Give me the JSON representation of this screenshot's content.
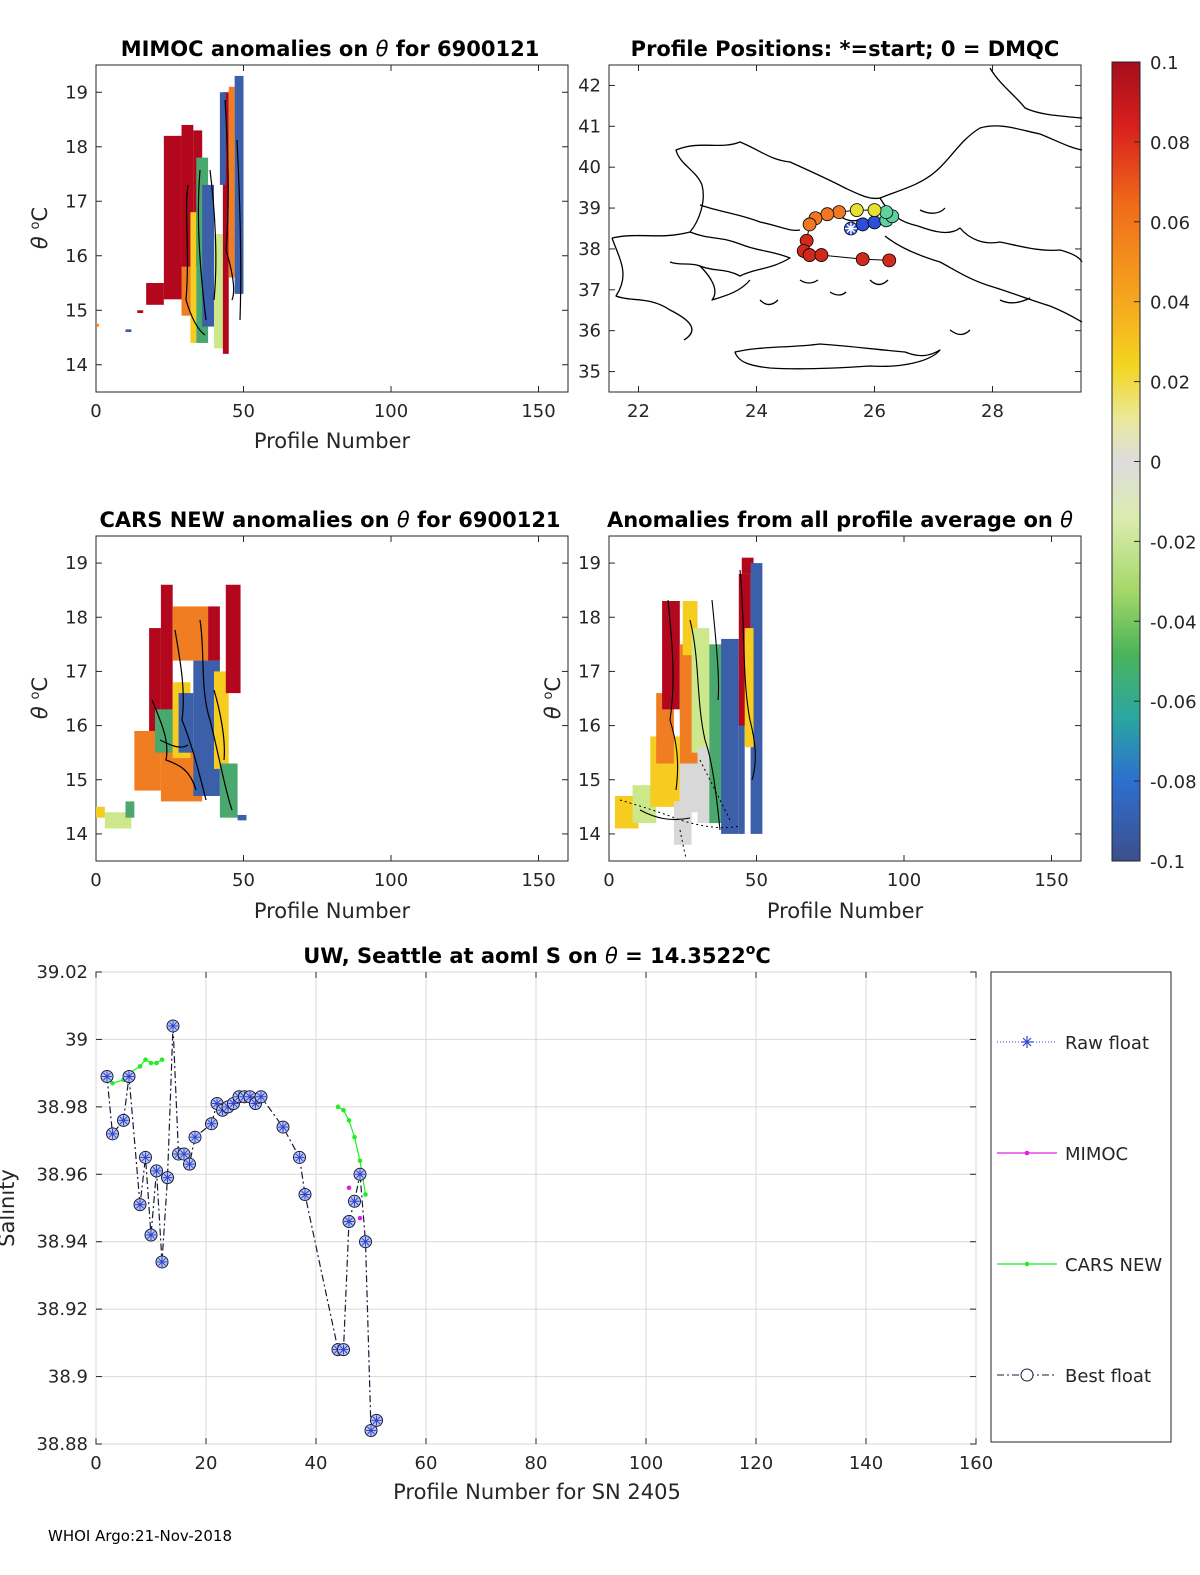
{
  "footer": "WHOI Argo:21-Nov-2018",
  "panels": {
    "mimoc": {
      "title_prefix": "MIMOC anomalies on ",
      "theta": "θ",
      "title_suffix": "  for 6900121",
      "xlabel": "Profile Number",
      "ylabel_theta": "θ",
      "ylabel_unit": "o",
      "ylabel_c": "C"
    },
    "positions": {
      "title": "Profile Positions: *=start; 0 = DMQC"
    },
    "cars": {
      "title_prefix": "CARS NEW anomalies on ",
      "theta": "θ",
      "title_suffix": " for 6900121",
      "xlabel": "Profile Number",
      "ylabel_theta": "θ",
      "ylabel_unit": "o",
      "ylabel_c": "C"
    },
    "allprof": {
      "title_prefix": "Anomalies from all profile average on ",
      "theta": "θ",
      "xlabel": "Profile Number",
      "ylabel_theta": "θ",
      "ylabel_unit": "o",
      "ylabel_c": "C"
    },
    "salinity": {
      "title_prefix": "UW, Seattle at aoml S on ",
      "theta": "θ",
      "title_mid": " = 14.3522",
      "title_unit": "o",
      "title_end": "C",
      "xlabel": "Profile Number for SN 2405",
      "ylabel": "Salinity"
    }
  },
  "colors": {
    "red": "#b2071d",
    "orange": "#f07d22",
    "yellow": "#f5cc1f",
    "grey": "#d8d8d8",
    "lightgreen": "#cde88a",
    "green": "#4aa86e",
    "blue": "#3b5fa8",
    "float_blue": "#3344cc",
    "mimoc_magenta": "#e020e0",
    "cars_green": "#22ee22"
  },
  "chart_data": [
    {
      "type": "heatmap",
      "title": "MIMOC anomalies on θ  for 6900121",
      "xlabel": "Profile Number",
      "ylabel": "θ °C",
      "xlim": [
        0,
        160
      ],
      "ylim": [
        13.5,
        19.5
      ],
      "xticks": [
        "0",
        "50",
        "100",
        "150"
      ],
      "yticks": [
        "14",
        "15",
        "16",
        "17",
        "18",
        "19"
      ],
      "cells": [
        {
          "x0": 17,
          "x1": 23,
          "y0": 15.1,
          "y1": 15.5,
          "c": "red"
        },
        {
          "x0": 23,
          "x1": 29,
          "y0": 15.2,
          "y1": 18.2,
          "c": "red"
        },
        {
          "x0": 29,
          "x1": 33,
          "y0": 15.0,
          "y1": 18.4,
          "c": "red"
        },
        {
          "x0": 33,
          "x1": 36,
          "y0": 15.8,
          "y1": 18.3,
          "c": "red"
        },
        {
          "x0": 29,
          "x1": 32,
          "y0": 14.9,
          "y1": 15.8,
          "c": "orange"
        },
        {
          "x0": 32,
          "x1": 34,
          "y0": 14.4,
          "y1": 16.8,
          "c": "yellow"
        },
        {
          "x0": 34,
          "x1": 38,
          "y0": 14.4,
          "y1": 17.8,
          "c": "green"
        },
        {
          "x0": 36,
          "x1": 40,
          "y0": 14.7,
          "y1": 17.3,
          "c": "blue"
        },
        {
          "x0": 40,
          "x1": 43,
          "y0": 14.3,
          "y1": 16.4,
          "c": "lightgreen"
        },
        {
          "x0": 43,
          "x1": 45,
          "y0": 14.2,
          "y1": 19.0,
          "c": "red"
        },
        {
          "x0": 45,
          "x1": 47,
          "y0": 15.6,
          "y1": 19.1,
          "c": "orange"
        },
        {
          "x0": 47,
          "x1": 50,
          "y0": 15.3,
          "y1": 19.3,
          "c": "blue"
        },
        {
          "x0": 42,
          "x1": 44,
          "y0": 17.3,
          "y1": 19.0,
          "c": "blue"
        },
        {
          "x0": 0,
          "x1": 1,
          "y0": 14.7,
          "y1": 14.75,
          "c": "orange"
        },
        {
          "x0": 10,
          "x1": 12,
          "y0": 14.6,
          "y1": 14.65,
          "c": "blue"
        },
        {
          "x0": 14,
          "x1": 16,
          "y0": 14.95,
          "y1": 15.0,
          "c": "red"
        }
      ]
    },
    {
      "type": "scatter",
      "title": "Profile Positions: *=start; 0 = DMQC",
      "xlim": [
        21.5,
        29.5
      ],
      "ylim": [
        34.5,
        42.5
      ],
      "xticks": [
        "22",
        "24",
        "26",
        "28"
      ],
      "yticks": [
        "35",
        "36",
        "37",
        "38",
        "39",
        "40",
        "41",
        "42"
      ],
      "track_lon": [
        25.6,
        25.8,
        26.0,
        26.2,
        26.3,
        26.2,
        26.0,
        25.7,
        25.4,
        25.2,
        25.0,
        24.9,
        24.85,
        24.8,
        24.9,
        25.1,
        25.8,
        26.25
      ],
      "track_lat": [
        38.5,
        38.6,
        38.65,
        38.7,
        38.8,
        38.9,
        38.95,
        38.95,
        38.9,
        38.85,
        38.75,
        38.6,
        38.2,
        37.95,
        37.85,
        37.85,
        37.75,
        37.72
      ],
      "track_color": [
        "blue",
        "blue",
        "blue",
        "green",
        "green",
        "green",
        "yellow",
        "yellow",
        "orange",
        "orange",
        "orange",
        "orange",
        "red",
        "red",
        "red",
        "red",
        "red",
        "red"
      ]
    },
    {
      "type": "heatmap",
      "title": "CARS NEW anomalies on θ for 6900121",
      "xlabel": "Profile Number",
      "ylabel": "θ °C",
      "xlim": [
        0,
        160
      ],
      "ylim": [
        13.5,
        19.5
      ],
      "xticks": [
        "0",
        "50",
        "100",
        "150"
      ],
      "yticks": [
        "14",
        "15",
        "16",
        "17",
        "18",
        "19"
      ],
      "cells": [
        {
          "x0": 0,
          "x1": 3,
          "y0": 14.3,
          "y1": 14.5,
          "c": "yellow"
        },
        {
          "x0": 3,
          "x1": 12,
          "y0": 14.1,
          "y1": 14.4,
          "c": "lightgreen"
        },
        {
          "x0": 10,
          "x1": 13,
          "y0": 14.3,
          "y1": 14.6,
          "c": "green"
        },
        {
          "x0": 13,
          "x1": 22,
          "y0": 14.8,
          "y1": 15.9,
          "c": "orange"
        },
        {
          "x0": 18,
          "x1": 22,
          "y0": 15.9,
          "y1": 17.8,
          "c": "red"
        },
        {
          "x0": 22,
          "x1": 36,
          "y0": 14.6,
          "y1": 15.6,
          "c": "orange"
        },
        {
          "x0": 22,
          "x1": 26,
          "y0": 15.6,
          "y1": 18.6,
          "c": "red"
        },
        {
          "x0": 26,
          "x1": 38,
          "y0": 17.2,
          "y1": 18.2,
          "c": "orange"
        },
        {
          "x0": 20,
          "x1": 26,
          "y0": 15.5,
          "y1": 16.3,
          "c": "green"
        },
        {
          "x0": 26,
          "x1": 32,
          "y0": 15.4,
          "y1": 16.8,
          "c": "yellow"
        },
        {
          "x0": 28,
          "x1": 33,
          "y0": 15.5,
          "y1": 16.6,
          "c": "blue"
        },
        {
          "x0": 33,
          "x1": 42,
          "y0": 14.7,
          "y1": 17.2,
          "c": "blue"
        },
        {
          "x0": 38,
          "x1": 42,
          "y0": 17.2,
          "y1": 18.2,
          "c": "red"
        },
        {
          "x0": 40,
          "x1": 45,
          "y0": 15.2,
          "y1": 17.0,
          "c": "yellow"
        },
        {
          "x0": 44,
          "x1": 49,
          "y0": 16.6,
          "y1": 18.6,
          "c": "red"
        },
        {
          "x0": 42,
          "x1": 48,
          "y0": 14.3,
          "y1": 15.3,
          "c": "green"
        },
        {
          "x0": 48,
          "x1": 51,
          "y0": 14.25,
          "y1": 14.35,
          "c": "blue"
        }
      ]
    },
    {
      "type": "heatmap",
      "title": "Anomalies from all profile average on θ",
      "xlabel": "Profile Number",
      "ylabel": "θ °C",
      "xlim": [
        0,
        160
      ],
      "ylim": [
        13.5,
        19.5
      ],
      "xticks": [
        "0",
        "50",
        "100",
        "150"
      ],
      "yticks": [
        "14",
        "15",
        "16",
        "17",
        "18",
        "19"
      ],
      "cells": [
        {
          "x0": 2,
          "x1": 10,
          "y0": 14.1,
          "y1": 14.7,
          "c": "yellow"
        },
        {
          "x0": 8,
          "x1": 16,
          "y0": 14.2,
          "y1": 14.9,
          "c": "lightgreen"
        },
        {
          "x0": 14,
          "x1": 24,
          "y0": 14.5,
          "y1": 15.8,
          "c": "yellow"
        },
        {
          "x0": 16,
          "x1": 22,
          "y0": 15.3,
          "y1": 16.6,
          "c": "orange"
        },
        {
          "x0": 18,
          "x1": 24,
          "y0": 16.3,
          "y1": 18.3,
          "c": "red"
        },
        {
          "x0": 22,
          "x1": 28,
          "y0": 13.8,
          "y1": 14.6,
          "c": "grey"
        },
        {
          "x0": 24,
          "x1": 30,
          "y0": 14.4,
          "y1": 15.3,
          "c": "grey"
        },
        {
          "x0": 24,
          "x1": 30,
          "y0": 15.3,
          "y1": 17.5,
          "c": "orange"
        },
        {
          "x0": 25,
          "x1": 30,
          "y0": 17.3,
          "y1": 18.3,
          "c": "yellow"
        },
        {
          "x0": 28,
          "x1": 34,
          "y0": 15.5,
          "y1": 17.8,
          "c": "lightgreen"
        },
        {
          "x0": 30,
          "x1": 38,
          "y0": 14.2,
          "y1": 15.6,
          "c": "grey"
        },
        {
          "x0": 34,
          "x1": 40,
          "y0": 14.2,
          "y1": 17.5,
          "c": "green"
        },
        {
          "x0": 38,
          "x1": 44,
          "y0": 14.0,
          "y1": 17.6,
          "c": "blue"
        },
        {
          "x0": 44,
          "x1": 46,
          "y0": 14.0,
          "y1": 16.8,
          "c": "blue"
        },
        {
          "x0": 44,
          "x1": 48,
          "y0": 16.0,
          "y1": 18.8,
          "c": "red"
        },
        {
          "x0": 45,
          "x1": 49,
          "y0": 18.8,
          "y1": 19.1,
          "c": "red"
        },
        {
          "x0": 48,
          "x1": 52,
          "y0": 14.0,
          "y1": 19.0,
          "c": "blue"
        },
        {
          "x0": 46,
          "x1": 49,
          "y0": 15.6,
          "y1": 17.8,
          "c": "yellow"
        }
      ]
    },
    {
      "type": "colorbar",
      "clim": [
        -0.1,
        0.1
      ],
      "ticks": [
        "0.1",
        "0.08",
        "0.06",
        "0.04",
        "0.02",
        "0",
        "-0.02",
        "-0.04",
        "-0.06",
        "-0.08",
        "-0.1"
      ]
    },
    {
      "type": "line",
      "title": "UW, Seattle at aoml S on θ = 14.3522°C",
      "xlabel": "Profile Number for SN 2405",
      "ylabel": "Salinity",
      "xlim": [
        0,
        160
      ],
      "ylim": [
        38.88,
        39.02
      ],
      "xticks": [
        "0",
        "20",
        "40",
        "60",
        "80",
        "100",
        "120",
        "140",
        "160"
      ],
      "yticks": [
        "38.88",
        "38.9",
        "38.92",
        "38.94",
        "38.96",
        "38.98",
        "39",
        "39.02"
      ],
      "legend": [
        "Raw float",
        "MIMOC",
        "CARS NEW",
        "Best float"
      ],
      "series": [
        {
          "name": "Best float",
          "x": [
            2,
            3,
            5,
            6,
            8,
            9,
            10,
            11,
            12,
            13,
            14,
            15,
            16,
            17,
            18,
            21,
            22,
            23,
            24,
            25,
            26,
            27,
            28,
            29,
            30,
            34,
            37,
            38,
            44,
            45,
            46,
            47,
            48,
            49,
            50,
            51
          ],
          "y": [
            38.989,
            38.972,
            38.976,
            38.989,
            38.951,
            38.965,
            38.942,
            38.961,
            38.934,
            38.959,
            39.004,
            38.966,
            38.966,
            38.963,
            38.971,
            38.975,
            38.981,
            38.979,
            38.98,
            38.981,
            38.983,
            38.983,
            38.983,
            38.981,
            38.983,
            38.974,
            38.965,
            38.954,
            38.908,
            38.908,
            38.946,
            38.952,
            38.96,
            38.94,
            38.884,
            38.887
          ]
        },
        {
          "name": "CARS NEW",
          "x": [
            2,
            3,
            5,
            6,
            8,
            9,
            10,
            11,
            12,
            44,
            45,
            46,
            47,
            48,
            49
          ],
          "y": [
            38.988,
            38.987,
            38.988,
            38.99,
            38.992,
            38.994,
            38.993,
            38.993,
            38.994,
            38.98,
            38.979,
            38.976,
            38.971,
            38.964,
            38.954
          ]
        },
        {
          "name": "MIMOC",
          "x": [
            46,
            48
          ],
          "y": [
            38.956,
            38.947
          ]
        }
      ]
    }
  ]
}
